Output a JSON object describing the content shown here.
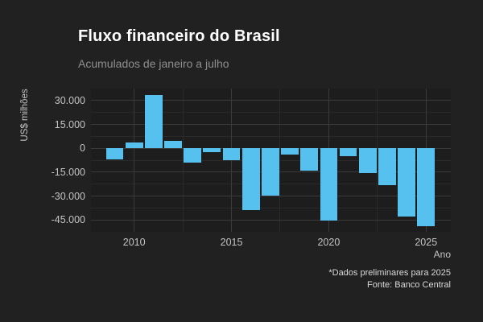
{
  "colors": {
    "figure_background": "#212121",
    "panel_background": "#1d1d1d",
    "bar": "#56C0EE",
    "grid_major": "#3a3a3a",
    "grid_minor": "#2a2a2a",
    "title_text": "#ffffff",
    "subtitle_text": "#8f8f8f",
    "axis_text": "#c4c4c4",
    "caption_text": "#d9d9d9"
  },
  "header": {
    "title": "Fluxo financeiro do Brasil",
    "subtitle": "Acumulados de janeiro a julho"
  },
  "footer": {
    "note": "*Dados preliminares para 2025",
    "source": "Fonte: Banco Central"
  },
  "chart_data": {
    "type": "bar",
    "title": "Fluxo financeiro do Brasil",
    "subtitle": "Acumulados de janeiro a julho",
    "xlabel": "Ano",
    "ylabel": "US$ milhões",
    "categories": [
      2009,
      2010,
      2011,
      2012,
      2013,
      2014,
      2015,
      2016,
      2017,
      2018,
      2019,
      2020,
      2021,
      2022,
      2023,
      2024,
      2025
    ],
    "values": [
      -7000,
      3500,
      33500,
      4500,
      -9000,
      -2500,
      -7500,
      -39000,
      -30000,
      -4000,
      -14000,
      -45500,
      -5000,
      -15500,
      -23000,
      -43000,
      -49000
    ],
    "ylim": [
      -52500,
      37500
    ],
    "yticks": [
      30000,
      15000,
      0,
      -15000,
      -30000,
      -45000
    ],
    "ytick_labels": [
      "30.000",
      "15.000",
      "0",
      "-15.000",
      "-30.000",
      "-45.000"
    ],
    "yticks_minor": [
      22500,
      7500,
      -7500,
      -22500,
      -37500,
      -52500
    ],
    "xticks": [
      2010,
      2015,
      2020,
      2025
    ],
    "xtick_labels": [
      "2010",
      "2015",
      "2020",
      "2025"
    ],
    "xticks_minor": [
      2012.5,
      2017.5,
      2022.5
    ],
    "grid": true,
    "legend": "none",
    "bar_color": "#56C0EE",
    "note": "*Dados preliminares para 2025",
    "source": "Fonte: Banco Central"
  }
}
